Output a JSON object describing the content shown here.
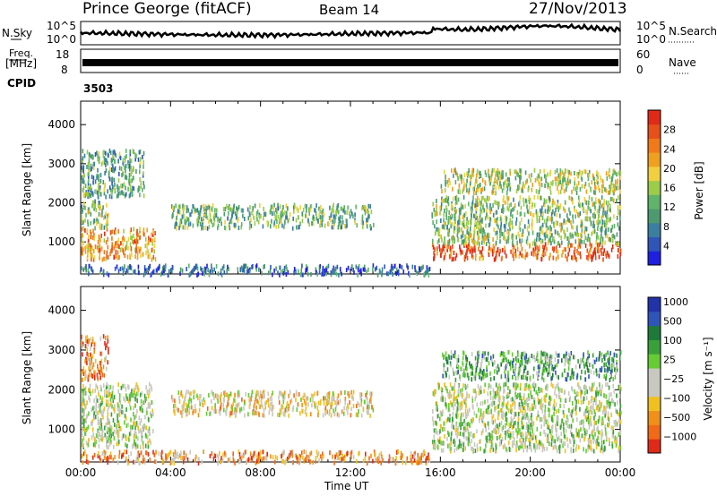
{
  "header": {
    "station": "Prince George (fitACF)",
    "beam": "Beam 14",
    "date": "27/Nov/2013"
  },
  "top_panels": {
    "nsky_label": "N.Sky",
    "nsky_ticks": [
      "10^5",
      "10^0"
    ],
    "nsearch_label": "N.Search",
    "nsearch_ticks": [
      "10^5",
      "10^0"
    ],
    "freq_label": "Freq.",
    "freq_unit": "[MHz]",
    "freq_ticks": [
      "18",
      "8"
    ],
    "nave_label": "Nave",
    "nave_ticks": [
      "60",
      "0"
    ],
    "cpid_label": "CPID",
    "cpid_value": "3503"
  },
  "colors": {
    "power_scale": [
      "#1f1fe0",
      "#2f55b8",
      "#3b7fa0",
      "#4d9a70",
      "#5fb36a",
      "#9bcc4a",
      "#f0d040",
      "#f0a020",
      "#f07a1a",
      "#e8501a",
      "#e02a18"
    ],
    "velocity_scale": [
      "#2233aa",
      "#2f55b8",
      "#1e7a3a",
      "#3aa03a",
      "#66cc33",
      "#c8c8c0",
      "#c8c8c0",
      "#f0c020",
      "#f0901a",
      "#f06a18",
      "#e02a18"
    ]
  },
  "chart_data": [
    {
      "type": "heatmap",
      "name_key": "power",
      "ylabel": "Slant Range [km]",
      "ylim": [
        180,
        4600
      ],
      "yticks": [
        "1000",
        "2000",
        "3000",
        "4000"
      ],
      "xlim": [
        0,
        24
      ],
      "colorbar": {
        "label": "Power [dB]",
        "range": [
          0,
          32
        ],
        "ticks": [
          "4",
          "8",
          "12",
          "16",
          "20",
          "24",
          "28"
        ]
      },
      "regions": [
        {
          "t0": 0.0,
          "t1": 3.3,
          "r0": 600,
          "r1": 1400,
          "level": 0.72
        },
        {
          "t0": 0.0,
          "t1": 1.2,
          "r0": 1400,
          "r1": 2100,
          "level": 0.45
        },
        {
          "t0": 0.0,
          "t1": 2.8,
          "r0": 2200,
          "r1": 3400,
          "level": 0.35
        },
        {
          "t0": 4.0,
          "t1": 13.0,
          "r0": 1400,
          "r1": 2000,
          "level": 0.4
        },
        {
          "t0": 15.6,
          "t1": 24.0,
          "r0": 600,
          "r1": 1000,
          "level": 0.85
        },
        {
          "t0": 15.6,
          "t1": 24.0,
          "r0": 1000,
          "r1": 2200,
          "level": 0.45
        },
        {
          "t0": 16.0,
          "t1": 24.0,
          "r0": 2300,
          "r1": 2900,
          "level": 0.5
        },
        {
          "t0": 0.0,
          "t1": 15.5,
          "r0": 200,
          "r1": 450,
          "level": 0.2
        }
      ]
    },
    {
      "type": "heatmap",
      "name_key": "velocity",
      "ylabel": "Slant Range [km]",
      "xlabel": "Time UT",
      "ylim": [
        180,
        4600
      ],
      "yticks": [
        "1000",
        "2000",
        "3000",
        "4000"
      ],
      "xlim": [
        0,
        24
      ],
      "xticks": [
        "00:00",
        "04:00",
        "08:00",
        "12:00",
        "16:00",
        "20:00",
        "00:00"
      ],
      "colorbar": {
        "label": "Velocity [m s⁻¹]",
        "ticks": [
          "1000",
          "500",
          "100",
          "25",
          "−25",
          "−100",
          "−500",
          "−1000"
        ]
      },
      "regions": [
        {
          "t0": 0.0,
          "t1": 1.2,
          "r0": 2300,
          "r1": 3400,
          "level": 0.8
        },
        {
          "t0": 0.0,
          "t1": 3.2,
          "r0": 600,
          "r1": 2200,
          "level": 0.5
        },
        {
          "t0": 4.0,
          "t1": 13.0,
          "r0": 1400,
          "r1": 2000,
          "level": 0.62
        },
        {
          "t0": 15.6,
          "t1": 24.0,
          "r0": 500,
          "r1": 2200,
          "level": 0.5
        },
        {
          "t0": 16.0,
          "t1": 24.0,
          "r0": 2300,
          "r1": 3000,
          "level": 0.35
        },
        {
          "t0": 0.0,
          "t1": 15.5,
          "r0": 200,
          "r1": 500,
          "level": 0.75
        }
      ]
    }
  ],
  "time_axis": {
    "xlabel": "Time UT",
    "ticks": [
      "00:00",
      "04:00",
      "08:00",
      "12:00",
      "16:00",
      "20:00",
      "00:00"
    ]
  }
}
